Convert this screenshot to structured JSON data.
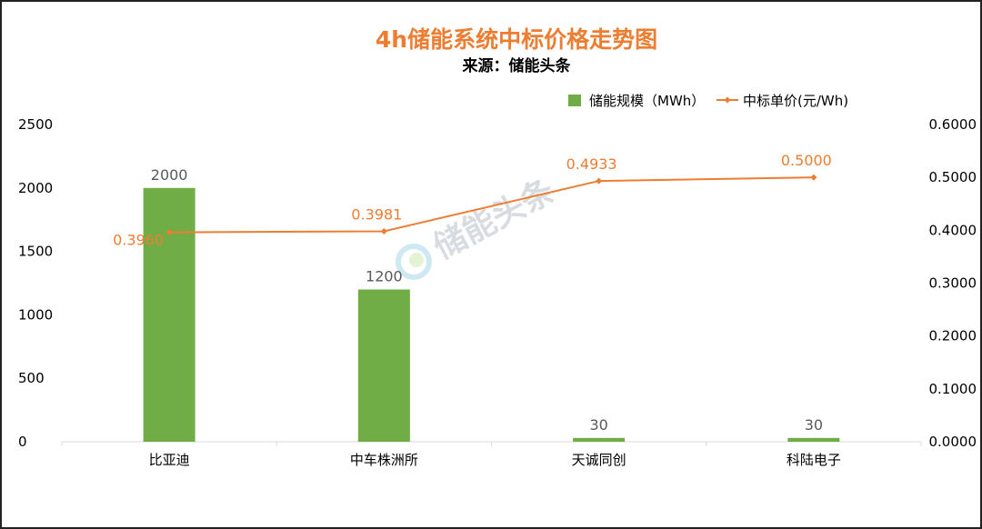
{
  "chart_data": {
    "type": "bar+line",
    "title": "4h储能系统中标价格走势图",
    "subtitle": "来源：储能头条",
    "categories": [
      "比亚迪",
      "中车株洲所",
      "天诚同创",
      "科陆电子"
    ],
    "series": [
      {
        "name": "储能规模（MWh）",
        "type": "bar",
        "axis": "left",
        "color": "#70AD47",
        "values": [
          2000,
          1200,
          30,
          30
        ],
        "labels": [
          "2000",
          "1200",
          "30",
          "30"
        ]
      },
      {
        "name": "中标单价(元/Wh)",
        "type": "line",
        "axis": "right",
        "color": "#ED7D31",
        "values": [
          0.396,
          0.3981,
          0.4933,
          0.5
        ],
        "labels": [
          "0.3960",
          "0.3981",
          "0.4933",
          "0.5000"
        ]
      }
    ],
    "left_axis": {
      "ylim": [
        0,
        2500
      ],
      "ticks": [
        "0",
        "500",
        "1000",
        "1500",
        "2000",
        "2500"
      ]
    },
    "right_axis": {
      "ylim": [
        0,
        0.6
      ],
      "ticks": [
        "0.0000",
        "0.1000",
        "0.2000",
        "0.3000",
        "0.4000",
        "0.5000",
        "0.6000"
      ]
    },
    "legend_position": "top-right",
    "grid": false,
    "watermark": "储能头条"
  }
}
